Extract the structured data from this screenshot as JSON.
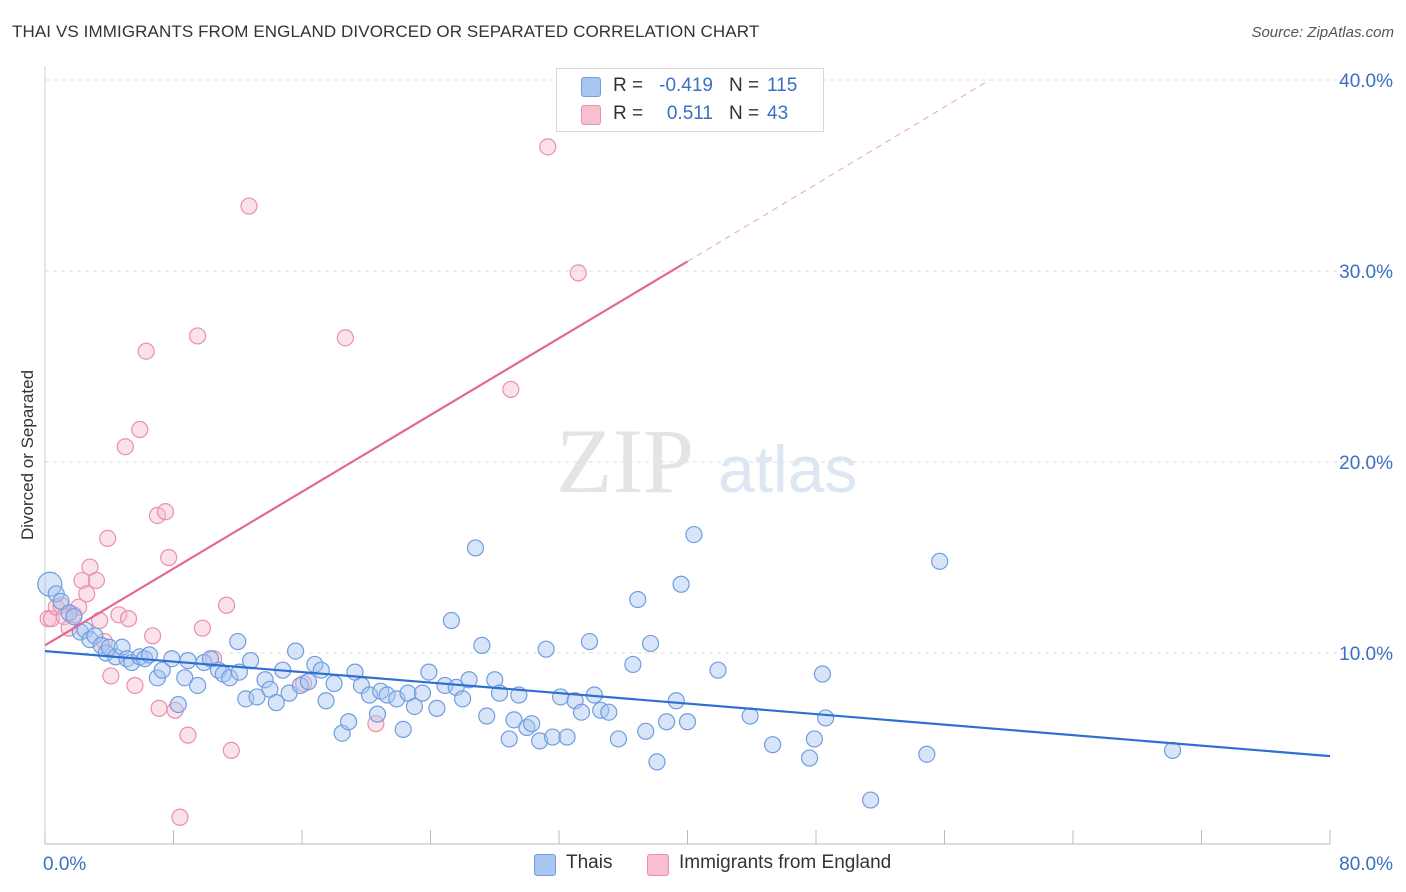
{
  "title": "THAI VS IMMIGRANTS FROM ENGLAND DIVORCED OR SEPARATED CORRELATION CHART",
  "source": "Source: ZipAtlas.com",
  "watermark": {
    "zip": "ZIP",
    "atlas": "atlas"
  },
  "legend": {
    "rows": [
      {
        "r_label": "R =",
        "r_value": "-0.419",
        "n_label": "N =",
        "n_value": "115",
        "color": "#a9c6ef",
        "border": "#6f9de0"
      },
      {
        "r_label": "R =",
        "r_value": "0.511",
        "n_label": "N =",
        "n_value": "43",
        "color": "#f7bfd0",
        "border": "#ea8fac"
      }
    ]
  },
  "bottom_legend": [
    {
      "label": "Thais",
      "color": "#a9c6ef",
      "border": "#6f9de0"
    },
    {
      "label": "Immigrants from England",
      "color": "#f7bfd0",
      "border": "#ea8fac"
    }
  ],
  "chart_data": {
    "type": "scatter",
    "title": "THAI VS IMMIGRANTS FROM ENGLAND DIVORCED OR SEPARATED CORRELATION CHART",
    "xlabel": "",
    "ylabel": "Divorced or Separated",
    "xlim": [
      0,
      80
    ],
    "ylim": [
      0,
      40
    ],
    "x_tick_labels": [
      {
        "value": 0,
        "label": "0.0%"
      },
      {
        "value": 80,
        "label": "80.0%"
      }
    ],
    "y_tick_labels": [
      {
        "value": 10,
        "label": "10.0%"
      },
      {
        "value": 20,
        "label": "20.0%"
      },
      {
        "value": 30,
        "label": "30.0%"
      },
      {
        "value": 40,
        "label": "40.0%"
      }
    ],
    "grid": true,
    "legend_position": "top-center",
    "series": [
      {
        "name": "Thais",
        "color": "#6f9de0",
        "fill": "#a9c6ef",
        "trend": {
          "x": [
            0,
            80
          ],
          "y": [
            10.1,
            4.6
          ]
        },
        "points": [
          [
            0.3,
            13.6
          ],
          [
            0.7,
            13.1
          ],
          [
            1.0,
            12.7
          ],
          [
            1.5,
            12.1
          ],
          [
            1.8,
            11.9
          ],
          [
            2.2,
            11.1
          ],
          [
            2.5,
            11.2
          ],
          [
            2.8,
            10.7
          ],
          [
            3.1,
            10.9
          ],
          [
            3.5,
            10.4
          ],
          [
            3.8,
            10.0
          ],
          [
            4.0,
            10.3
          ],
          [
            4.4,
            9.8
          ],
          [
            4.8,
            10.3
          ],
          [
            5.1,
            9.7
          ],
          [
            5.4,
            9.5
          ],
          [
            5.9,
            9.8
          ],
          [
            6.2,
            9.7
          ],
          [
            6.5,
            9.9
          ],
          [
            7.0,
            8.7
          ],
          [
            7.3,
            9.1
          ],
          [
            7.9,
            9.7
          ],
          [
            8.3,
            7.3
          ],
          [
            8.7,
            8.7
          ],
          [
            8.9,
            9.6
          ],
          [
            9.5,
            8.3
          ],
          [
            9.9,
            9.5
          ],
          [
            10.3,
            9.7
          ],
          [
            10.8,
            9.1
          ],
          [
            11.1,
            8.9
          ],
          [
            11.5,
            8.7
          ],
          [
            12.0,
            10.6
          ],
          [
            12.1,
            9.0
          ],
          [
            12.5,
            7.6
          ],
          [
            12.8,
            9.6
          ],
          [
            13.2,
            7.7
          ],
          [
            13.7,
            8.6
          ],
          [
            14.0,
            8.1
          ],
          [
            14.4,
            7.4
          ],
          [
            14.8,
            9.1
          ],
          [
            15.2,
            7.9
          ],
          [
            15.6,
            10.1
          ],
          [
            15.9,
            8.3
          ],
          [
            16.4,
            8.5
          ],
          [
            16.8,
            9.4
          ],
          [
            17.2,
            9.1
          ],
          [
            17.5,
            7.5
          ],
          [
            18.0,
            8.4
          ],
          [
            18.5,
            5.8
          ],
          [
            18.9,
            6.4
          ],
          [
            19.3,
            9.0
          ],
          [
            19.7,
            8.3
          ],
          [
            20.2,
            7.8
          ],
          [
            20.7,
            6.8
          ],
          [
            20.9,
            8.0
          ],
          [
            21.3,
            7.8
          ],
          [
            21.9,
            7.6
          ],
          [
            22.3,
            6.0
          ],
          [
            22.6,
            7.9
          ],
          [
            23.0,
            7.2
          ],
          [
            23.5,
            7.9
          ],
          [
            23.9,
            9.0
          ],
          [
            24.4,
            7.1
          ],
          [
            24.9,
            8.3
          ],
          [
            25.3,
            11.7
          ],
          [
            25.6,
            8.2
          ],
          [
            26.0,
            7.6
          ],
          [
            26.4,
            8.6
          ],
          [
            26.8,
            15.5
          ],
          [
            27.2,
            10.4
          ],
          [
            27.5,
            6.7
          ],
          [
            28.0,
            8.6
          ],
          [
            28.3,
            7.9
          ],
          [
            28.9,
            5.5
          ],
          [
            29.2,
            6.5
          ],
          [
            29.5,
            7.8
          ],
          [
            30.0,
            6.1
          ],
          [
            30.3,
            6.3
          ],
          [
            30.8,
            5.4
          ],
          [
            31.2,
            10.2
          ],
          [
            31.6,
            5.6
          ],
          [
            32.1,
            7.7
          ],
          [
            32.5,
            5.6
          ],
          [
            33.0,
            7.5
          ],
          [
            33.4,
            6.9
          ],
          [
            33.9,
            10.6
          ],
          [
            34.2,
            7.8
          ],
          [
            34.6,
            7.0
          ],
          [
            35.1,
            6.9
          ],
          [
            35.7,
            5.5
          ],
          [
            36.6,
            9.4
          ],
          [
            36.9,
            12.8
          ],
          [
            37.4,
            5.9
          ],
          [
            37.7,
            10.5
          ],
          [
            38.1,
            4.3
          ],
          [
            38.7,
            6.4
          ],
          [
            39.3,
            7.5
          ],
          [
            39.6,
            13.6
          ],
          [
            40.0,
            6.4
          ],
          [
            40.4,
            16.2
          ],
          [
            41.9,
            9.1
          ],
          [
            43.9,
            6.7
          ],
          [
            45.3,
            5.2
          ],
          [
            47.6,
            4.5
          ],
          [
            47.9,
            5.5
          ],
          [
            48.4,
            8.9
          ],
          [
            48.6,
            6.6
          ],
          [
            51.4,
            2.3
          ],
          [
            54.9,
            4.7
          ],
          [
            55.7,
            14.8
          ],
          [
            70.2,
            4.9
          ]
        ]
      },
      {
        "name": "Immigrants from England",
        "color": "#ea8fac",
        "fill": "#f7bfd0",
        "trend": {
          "x": [
            0,
            40
          ],
          "y": [
            10.4,
            30.5
          ]
        },
        "trend_dashed": {
          "x": [
            40,
            58.8
          ],
          "y": [
            30.5,
            40.0
          ]
        },
        "points": [
          [
            0.2,
            11.8
          ],
          [
            0.4,
            11.8
          ],
          [
            0.7,
            12.4
          ],
          [
            1.0,
            12.5
          ],
          [
            1.2,
            11.9
          ],
          [
            1.5,
            11.3
          ],
          [
            1.8,
            12.0
          ],
          [
            2.1,
            12.4
          ],
          [
            2.3,
            13.8
          ],
          [
            2.6,
            13.1
          ],
          [
            2.8,
            14.5
          ],
          [
            3.2,
            13.8
          ],
          [
            3.4,
            11.7
          ],
          [
            3.7,
            10.6
          ],
          [
            3.9,
            16.0
          ],
          [
            4.1,
            8.8
          ],
          [
            4.6,
            12.0
          ],
          [
            5.0,
            20.8
          ],
          [
            5.2,
            11.8
          ],
          [
            5.6,
            8.3
          ],
          [
            5.9,
            21.7
          ],
          [
            6.3,
            25.8
          ],
          [
            6.7,
            10.9
          ],
          [
            7.0,
            17.2
          ],
          [
            7.1,
            7.1
          ],
          [
            7.5,
            17.4
          ],
          [
            7.7,
            15.0
          ],
          [
            8.1,
            7.0
          ],
          [
            8.4,
            1.4
          ],
          [
            8.9,
            5.7
          ],
          [
            9.5,
            26.6
          ],
          [
            9.8,
            11.3
          ],
          [
            10.5,
            9.7
          ],
          [
            11.3,
            12.5
          ],
          [
            11.6,
            4.9
          ],
          [
            12.7,
            33.4
          ],
          [
            16.1,
            8.4
          ],
          [
            18.7,
            26.5
          ],
          [
            20.6,
            6.3
          ],
          [
            29.0,
            23.8
          ],
          [
            31.3,
            36.5
          ],
          [
            33.2,
            29.9
          ]
        ]
      }
    ]
  }
}
